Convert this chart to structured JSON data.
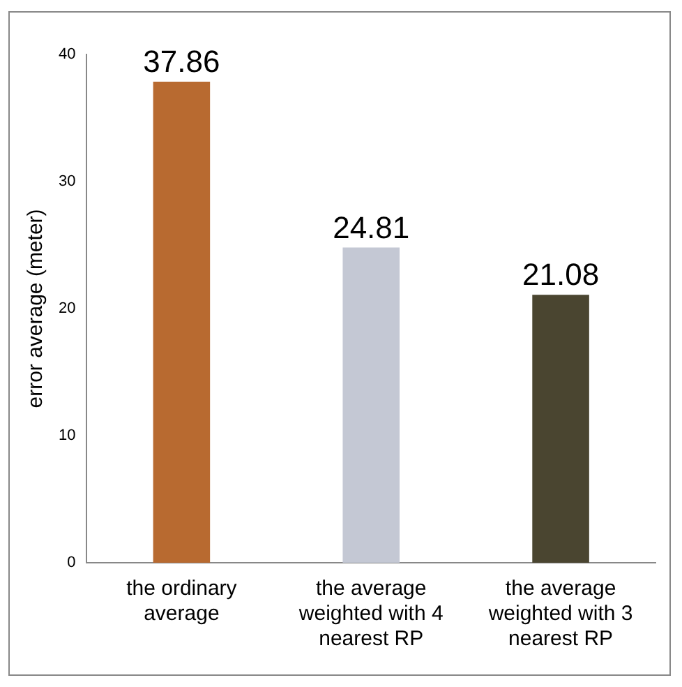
{
  "chart_data": {
    "type": "bar",
    "ylabel": "error average (meter)",
    "categories": [
      "the ordinary average",
      "the average weighted with 4 nearest RP",
      "the average weighted with 3 nearest RP"
    ],
    "values": [
      37.86,
      24.81,
      21.08
    ],
    "colors": [
      "#b86a30",
      "#c4c8d4",
      "#4a4530"
    ],
    "ylim": [
      0,
      40
    ],
    "yticks": [
      0,
      10,
      20,
      30,
      40
    ],
    "grid": false,
    "legend": false,
    "data_labels": true
  }
}
